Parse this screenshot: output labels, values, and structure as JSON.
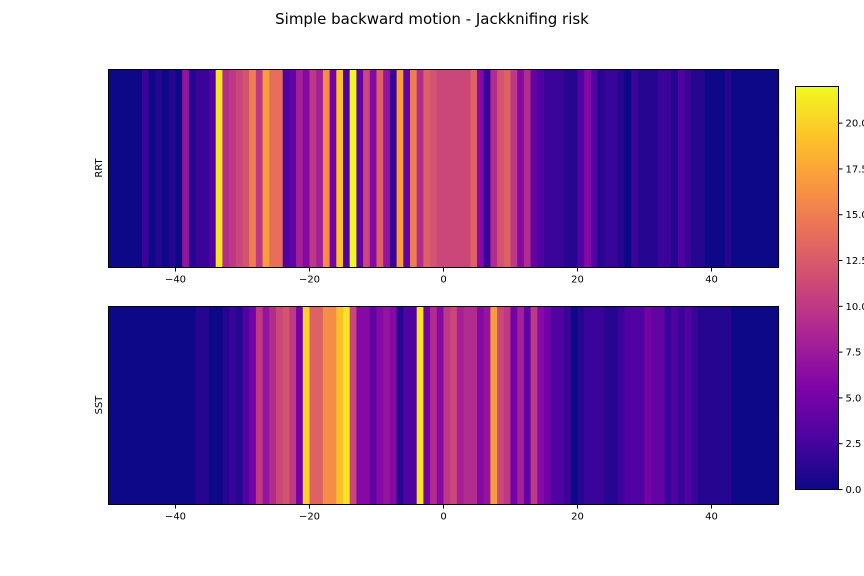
{
  "figure": {
    "title": "Simple backward motion - Jackknifing risk"
  },
  "chart_data": {
    "type": "heatmap",
    "title": "Simple backward motion - Jackknifing risk",
    "colormap": "plasma",
    "x_range": [
      -50,
      50
    ],
    "bin_width": 1,
    "value_range": [
      0,
      22
    ],
    "colorbar_ticks": [
      "0.0",
      "2.5",
      "5.0",
      "7.5",
      "10.0",
      "12.5",
      "15.0",
      "17.5",
      "20.0"
    ],
    "x_ticks": [
      "−40",
      "−20",
      "0",
      "20",
      "40"
    ],
    "panels": [
      {
        "ylabel": "RRT",
        "x_start": -50,
        "values": [
          0,
          0,
          0,
          0,
          0,
          2,
          0,
          1,
          0,
          1,
          0,
          7,
          1,
          2,
          2,
          3,
          21,
          9,
          10,
          11,
          12,
          15,
          10,
          17,
          14,
          14,
          3,
          4,
          8,
          6,
          10,
          8,
          16,
          5,
          19,
          3,
          22,
          4,
          11,
          6,
          13,
          7,
          2,
          17,
          4,
          15,
          9,
          13,
          12,
          11,
          11,
          11,
          11,
          11,
          13,
          6,
          2,
          9,
          12,
          13,
          10,
          6,
          9,
          4,
          3,
          2,
          2,
          2,
          1,
          1,
          3,
          6,
          3,
          1,
          2,
          2,
          1,
          0,
          2,
          1,
          1,
          1,
          2,
          2,
          1,
          3,
          2,
          1,
          1,
          0,
          0,
          0,
          1,
          0,
          0,
          0,
          0,
          0,
          0,
          0
        ]
      },
      {
        "ylabel": "SST",
        "x_start": -50,
        "values": [
          0,
          0,
          0,
          0,
          0,
          0,
          0,
          0,
          0,
          0,
          0,
          0,
          0,
          1,
          1,
          0,
          0,
          1,
          2,
          1,
          3,
          5,
          10,
          7,
          9,
          11,
          12,
          10,
          5,
          20,
          13,
          13,
          16,
          16,
          19,
          21,
          11,
          6,
          6,
          4,
          6,
          7,
          6,
          1,
          3,
          3,
          21,
          5,
          9,
          6,
          10,
          11,
          8,
          9,
          9,
          6,
          7,
          17,
          11,
          10,
          5,
          8,
          4,
          10,
          6,
          5,
          3,
          3,
          2,
          0,
          1,
          2,
          2,
          2,
          1,
          1,
          2,
          3,
          3,
          3,
          5,
          4,
          4,
          2,
          3,
          2,
          3,
          2,
          1,
          1,
          1,
          1,
          1,
          0,
          0,
          0,
          0,
          0,
          0,
          0
        ]
      }
    ]
  }
}
